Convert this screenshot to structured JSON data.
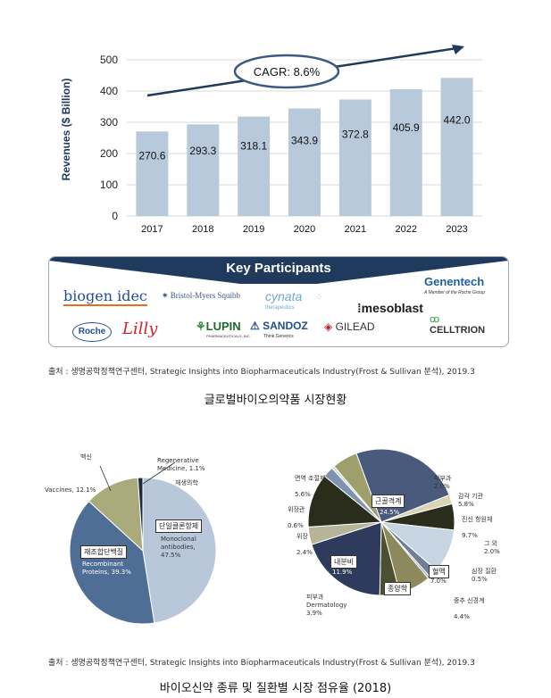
{
  "chart_data": [
    {
      "type": "bar",
      "categories": [
        "2017",
        "2018",
        "2019",
        "2020",
        "2021",
        "2022",
        "2023"
      ],
      "values": [
        270.6,
        293.3,
        318.1,
        343.9,
        372.8,
        405.9,
        442.0
      ],
      "value_labels": [
        "270.6",
        "293.3",
        "318.1",
        "343.9",
        "372.8",
        "405.9",
        "442.0"
      ],
      "ylabel": "Revenues ($ Billion)",
      "ylim": [
        0,
        500
      ],
      "yticks": [
        "0",
        "100",
        "200",
        "300",
        "400",
        "500"
      ],
      "annotation": "CAGR: 8.6%",
      "grid": true,
      "bar_color": "#b8c9db"
    },
    {
      "type": "pie",
      "slices": [
        {
          "name_ko": "단일클론항체",
          "name": "Monoclonal antibodies,",
          "value_label": "47.5%",
          "value": 47.5,
          "color": "#b8c8da"
        },
        {
          "name_ko": "재조합단백질",
          "name": "Recombinant Proteins, 39.3%",
          "value": 39.3,
          "color": "#4f6e96"
        },
        {
          "name_ko": "백신",
          "name": "Vaccines, 12.1%",
          "value": 12.1,
          "color": "#a9ab7c"
        },
        {
          "name": "Regenerative Medicine, 1.1%",
          "name_ko": "재생의학",
          "value": 1.1,
          "color": "#1c2a3c"
        }
      ]
    },
    {
      "type": "pie",
      "slices": [
        {
          "name": "근골격계",
          "value_label": "24.5%",
          "value": 24.5,
          "color": "#4a5a7c"
        },
        {
          "name": "피부과",
          "value_label": "2.0%",
          "value": 2.0,
          "color": "#d8d5b4"
        },
        {
          "name": "감각 기관",
          "value_label": "5.8%",
          "value": 5.8,
          "color": "#2b2e1c"
        },
        {
          "name": "진신 항원체",
          "value_label": "9.7%",
          "value": 9.7,
          "color": "#c7d4e2"
        },
        {
          "name": "그 외",
          "value_label": "2.0%",
          "value": 2.0,
          "color": "#6f7f94"
        },
        {
          "name": "심장 질환",
          "value_label": "0.5%",
          "value": 0.5,
          "color": "#9eb0c4"
        },
        {
          "name": "혈액",
          "value_label": "7.0%",
          "value": 7.0,
          "color": "#8c8a5c"
        },
        {
          "name": "중추 신경계",
          "value_label": "4.4%",
          "value": 4.4,
          "color": "#4b5130"
        },
        {
          "name": "종양학",
          "value_label": "19.7%",
          "value": 19.7,
          "color": "#2f3b5c"
        },
        {
          "name": "피부과 Dermatology",
          "value_label": "3.9%",
          "value": 3.9,
          "color": "#b7b599"
        },
        {
          "name": "내분비",
          "value_label": "11.9%",
          "value": 11.9,
          "color": "#2a2d1c"
        },
        {
          "name": "위장",
          "value_label": "2.4%",
          "value": 2.4,
          "color": "#7e93ad"
        },
        {
          "name": "위장관",
          "value_label": "0.6%",
          "value": 0.6,
          "color": "#d0d9e4"
        },
        {
          "name": "면역 조절제",
          "value_label": "5.6%",
          "value": 5.6,
          "color": "#9e9f6a"
        }
      ]
    }
  ],
  "participants": {
    "title": "Key Participants",
    "logos": [
      "biogen idec",
      "Bristol-Myers Squibb",
      "cynata",
      "therapeutics",
      "Genentech",
      "A Member of the Roche Group",
      "Roche",
      "Lilly",
      "LUPIN",
      "PHARMACEUTICALS, INC.",
      "SANDOZ",
      "Think Generics",
      "GILEAD",
      "mesoblast",
      "CELLTRION"
    ]
  },
  "source1": "출처 : 생명공학정책연구센터, Strategic Insights into Biopharmaceuticals Industry(Frost & Sullivan 분석), 2019.3",
  "caption1": "글로벌바이오의약품 시장현황",
  "source2": "출처 : 생명공학정책연구센터, Strategic Insights into Biopharmaceuticals Industry(Frost & Sullivan 분석), 2019.3",
  "caption2": "바이오신약 종류 및 질환별 시장 점유율 (2018)",
  "colors": {
    "bar": "#b8c9db",
    "banner": "#1f3a5c",
    "arrow": "#1f3a5c",
    "grid": "#d9d9d9"
  }
}
